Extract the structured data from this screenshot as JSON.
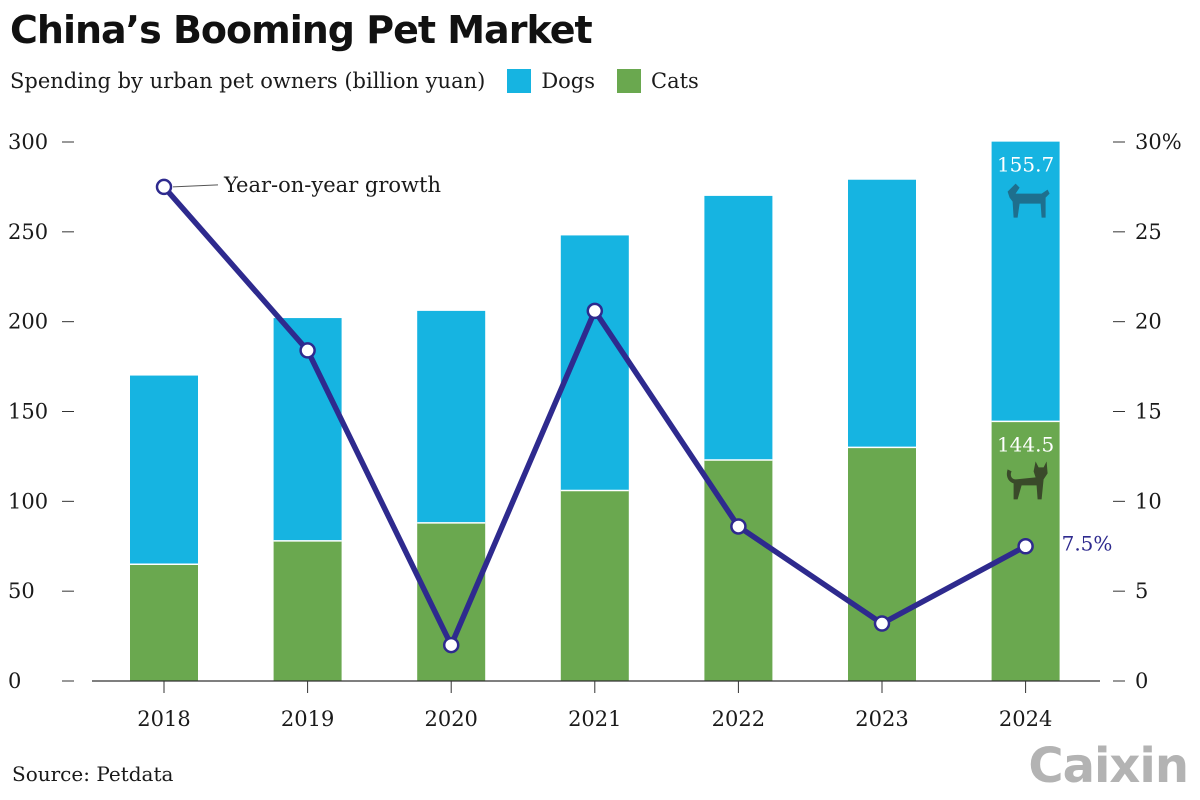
{
  "title": "China’s Booming Pet Market",
  "subtitle": "Spending by urban pet owners (billion yuan)",
  "legend": [
    {
      "label": "Dogs",
      "color": "#16b4e1"
    },
    {
      "label": "Cats",
      "color": "#6aa84f"
    }
  ],
  "source": "Source: Petdata",
  "brand": "Caixin",
  "colors": {
    "dogs": "#16b4e1",
    "cats": "#6aa84f",
    "line": "#2e2a8e",
    "axis": "#333333"
  },
  "chart_data": {
    "type": "bar",
    "stacked": true,
    "categories": [
      "2018",
      "2019",
      "2020",
      "2021",
      "2022",
      "2023",
      "2024"
    ],
    "series": [
      {
        "name": "Cats",
        "values": [
          65,
          78,
          88,
          106,
          123,
          130,
          144.5
        ]
      },
      {
        "name": "Dogs",
        "values": [
          105,
          124,
          118,
          142,
          147,
          149,
          155.7
        ]
      }
    ],
    "ylim": [
      0,
      300
    ],
    "yticks": [
      "0",
      "50",
      "100",
      "150",
      "200",
      "250",
      "300"
    ],
    "y2ticks": [
      "0",
      "5",
      "10",
      "15",
      "20",
      "25",
      "30%"
    ],
    "line": {
      "name": "Year-on-year growth",
      "axis": "right",
      "ylim": [
        0,
        30
      ],
      "values": [
        27.5,
        18.4,
        2.0,
        20.6,
        8.6,
        3.2,
        7.5
      ]
    },
    "annotations": {
      "dogs_2024": "155.7",
      "cats_2024": "144.5",
      "growth_2024": "7.5%",
      "growth_label": "Year-on-year growth"
    },
    "icons": [
      "dog-icon",
      "cat-icon"
    ],
    "grid": false
  }
}
